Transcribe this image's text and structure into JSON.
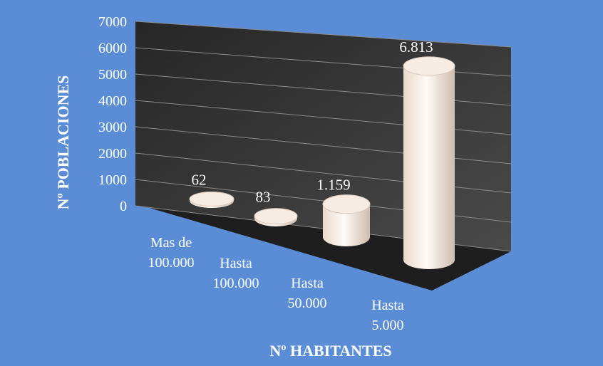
{
  "chart_data": {
    "type": "bar",
    "style": "3d-cylinder",
    "categories": [
      [
        "Mas de",
        "100.000"
      ],
      [
        "Hasta",
        "100.000"
      ],
      [
        "Hasta",
        "50.000"
      ],
      [
        "Hasta",
        "5.000"
      ]
    ],
    "values": [
      62,
      83,
      1159,
      6813
    ],
    "data_labels": [
      "62",
      "83",
      "1.159",
      "6.813"
    ],
    "ylim": [
      0,
      7000
    ],
    "yticks": [
      0,
      1000,
      2000,
      3000,
      4000,
      5000,
      6000,
      7000
    ],
    "xlabel": "Nº HABITANTES",
    "ylabel": "Nº POBLACIONES",
    "grid": true,
    "colors": {
      "background": "#5b8dd6",
      "wall": "#3a3a3a",
      "floor": "#1f1f1f",
      "gridline": "#8a8a8a",
      "bar": "#f3e6dc"
    }
  }
}
